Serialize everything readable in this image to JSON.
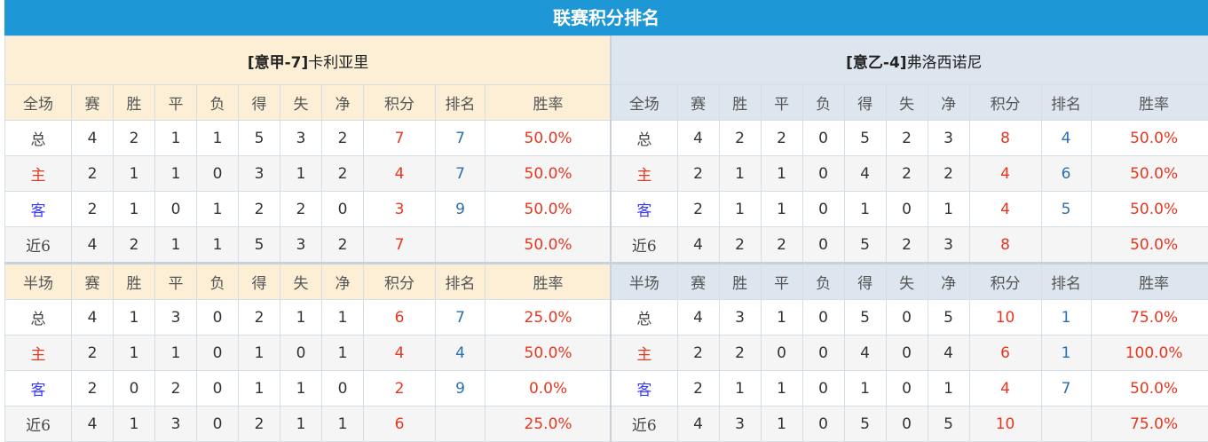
{
  "title": "联赛积分排名",
  "columns_full": [
    "全场",
    "赛",
    "胜",
    "平",
    "负",
    "得",
    "失",
    "净",
    "积分",
    "排名",
    "胜率"
  ],
  "columns_half": [
    "半场",
    "赛",
    "胜",
    "平",
    "负",
    "得",
    "失",
    "净",
    "积分",
    "排名",
    "胜率"
  ],
  "colors": {
    "header_bar": "#1e97d6",
    "points": "#e8371f",
    "rank": "#2a6fb0",
    "home": "#e8371f",
    "away": "#3a3aff",
    "left_header_bg": "#fcefd6",
    "right_header_bg": "#dde6ee"
  },
  "teams": [
    {
      "tag": "[意甲-7]",
      "name": "卡利亚里",
      "full": [
        [
          "总",
          "4",
          "2",
          "1",
          "1",
          "5",
          "3",
          "2",
          "7",
          "7",
          "50.0%"
        ],
        [
          "主",
          "2",
          "1",
          "1",
          "0",
          "3",
          "1",
          "2",
          "4",
          "7",
          "50.0%"
        ],
        [
          "客",
          "2",
          "1",
          "0",
          "1",
          "2",
          "2",
          "0",
          "3",
          "9",
          "50.0%"
        ],
        [
          "近6",
          "4",
          "2",
          "1",
          "1",
          "5",
          "3",
          "2",
          "7",
          "",
          "50.0%"
        ]
      ],
      "half": [
        [
          "总",
          "4",
          "1",
          "3",
          "0",
          "2",
          "1",
          "1",
          "6",
          "7",
          "25.0%"
        ],
        [
          "主",
          "2",
          "1",
          "1",
          "0",
          "1",
          "0",
          "1",
          "4",
          "4",
          "50.0%"
        ],
        [
          "客",
          "2",
          "0",
          "2",
          "0",
          "1",
          "1",
          "0",
          "2",
          "9",
          "0.0%"
        ],
        [
          "近6",
          "4",
          "1",
          "3",
          "0",
          "2",
          "1",
          "1",
          "6",
          "",
          "25.0%"
        ]
      ]
    },
    {
      "tag": "[意乙-4]",
      "name": "弗洛西诺尼",
      "full": [
        [
          "总",
          "4",
          "2",
          "2",
          "0",
          "5",
          "2",
          "3",
          "8",
          "4",
          "50.0%"
        ],
        [
          "主",
          "2",
          "1",
          "1",
          "0",
          "4",
          "2",
          "2",
          "4",
          "6",
          "50.0%"
        ],
        [
          "客",
          "2",
          "1",
          "1",
          "0",
          "1",
          "0",
          "1",
          "4",
          "5",
          "50.0%"
        ],
        [
          "近6",
          "4",
          "2",
          "2",
          "0",
          "5",
          "2",
          "3",
          "8",
          "",
          "50.0%"
        ]
      ],
      "half": [
        [
          "总",
          "4",
          "3",
          "1",
          "0",
          "5",
          "0",
          "5",
          "10",
          "1",
          "75.0%"
        ],
        [
          "主",
          "2",
          "2",
          "0",
          "0",
          "4",
          "0",
          "4",
          "6",
          "1",
          "100.0%"
        ],
        [
          "客",
          "2",
          "1",
          "1",
          "0",
          "1",
          "0",
          "1",
          "4",
          "7",
          "50.0%"
        ],
        [
          "近6",
          "4",
          "3",
          "1",
          "0",
          "5",
          "0",
          "5",
          "10",
          "",
          "75.0%"
        ]
      ]
    }
  ]
}
